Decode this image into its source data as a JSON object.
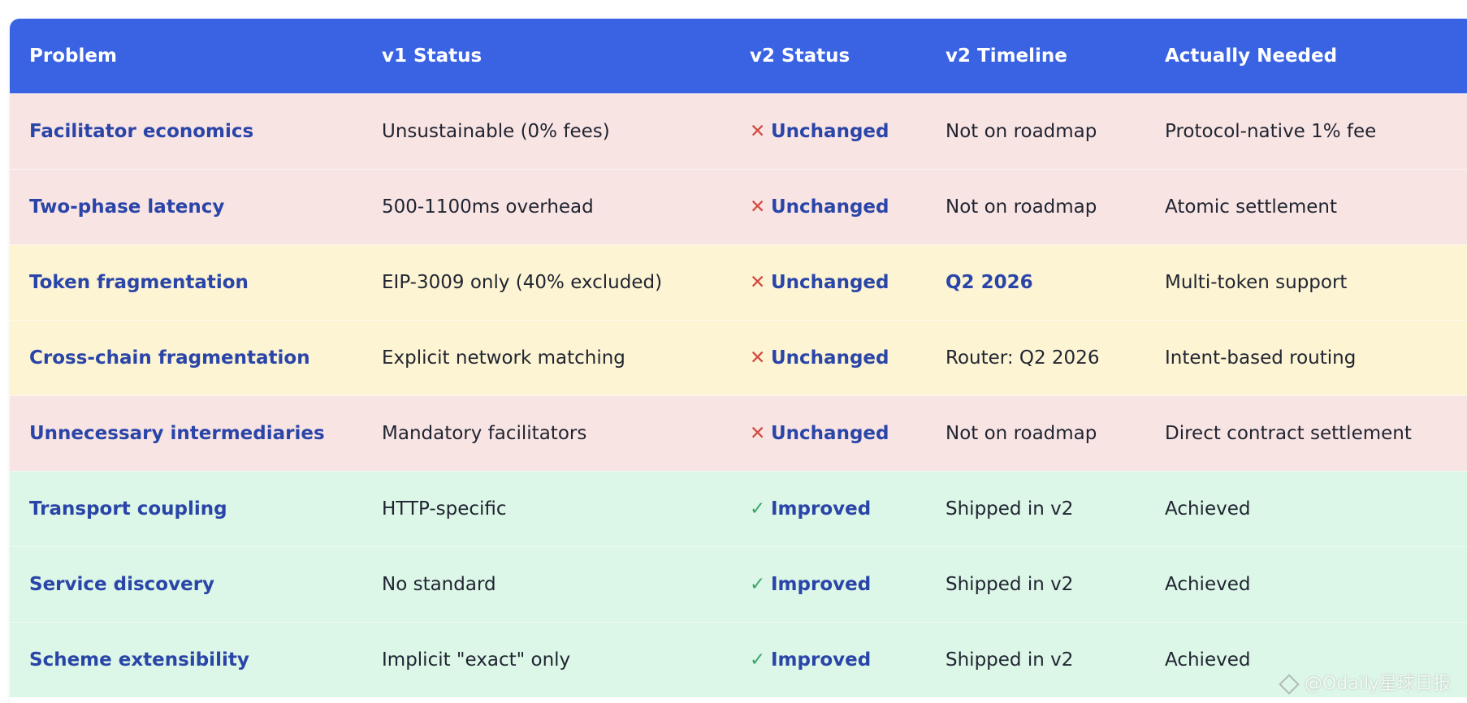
{
  "colors": {
    "header_bg": "#3a63e3",
    "header_text": "#ffffff",
    "row_red": "#f9e4e4",
    "row_yellow": "#fdf4d3",
    "row_green": "#dcf6e7",
    "cross_red": "#d2493f",
    "check_green": "#3aa66b",
    "link_blue": "#2a45a8"
  },
  "table": {
    "headers": [
      "Problem",
      "v1 Status",
      "v2 Status",
      "v2 Timeline",
      "Actually Needed"
    ],
    "rows": [
      {
        "problem": "Facilitator economics",
        "v1": "Unsustainable (0% fees)",
        "v2_icon": "cross-icon",
        "v2_glyph": "✕",
        "v2": "Unchanged",
        "timeline": "Not on roadmap",
        "timeline_highlight": false,
        "needed": "Protocol-native 1% fee",
        "tone": "red"
      },
      {
        "problem": "Two-phase latency",
        "v1": "500-1100ms overhead",
        "v2_icon": "cross-icon",
        "v2_glyph": "✕",
        "v2": "Unchanged",
        "timeline": "Not on roadmap",
        "timeline_highlight": false,
        "needed": "Atomic settlement",
        "tone": "red"
      },
      {
        "problem": "Token fragmentation",
        "v1": "EIP-3009 only (40% excluded)",
        "v2_icon": "cross-icon",
        "v2_glyph": "✕",
        "v2": "Unchanged",
        "timeline": "Q2 2026",
        "timeline_highlight": true,
        "needed": "Multi-token support",
        "tone": "yellow"
      },
      {
        "problem": "Cross-chain fragmentation",
        "v1": "Explicit network matching",
        "v2_icon": "cross-icon",
        "v2_glyph": "✕",
        "v2": "Unchanged",
        "timeline": "Router: Q2 2026",
        "timeline_highlight": false,
        "needed": "Intent-based routing",
        "tone": "yellow"
      },
      {
        "problem": "Unnecessary intermediaries",
        "v1": "Mandatory facilitators",
        "v2_icon": "cross-icon",
        "v2_glyph": "✕",
        "v2": "Unchanged",
        "timeline": "Not on roadmap",
        "timeline_highlight": false,
        "needed": "Direct contract settlement",
        "tone": "red"
      },
      {
        "problem": "Transport coupling",
        "v1": "HTTP-specific",
        "v2_icon": "check-icon",
        "v2_glyph": "✓",
        "v2": "Improved",
        "timeline": "Shipped in v2",
        "timeline_highlight": false,
        "needed": "Achieved",
        "tone": "green"
      },
      {
        "problem": "Service discovery",
        "v1": "No standard",
        "v2_icon": "check-icon",
        "v2_glyph": "✓",
        "v2": "Improved",
        "timeline": "Shipped in v2",
        "timeline_highlight": false,
        "needed": "Achieved",
        "tone": "green"
      },
      {
        "problem": "Scheme extensibility",
        "v1": "Implicit \"exact\" only",
        "v2_icon": "check-icon",
        "v2_glyph": "✓",
        "v2": "Improved",
        "timeline": "Shipped in v2",
        "timeline_highlight": false,
        "needed": "Achieved",
        "tone": "green"
      }
    ]
  },
  "watermark": {
    "icon": "odaily-logo-icon",
    "text": "@Odaily星球日报"
  }
}
